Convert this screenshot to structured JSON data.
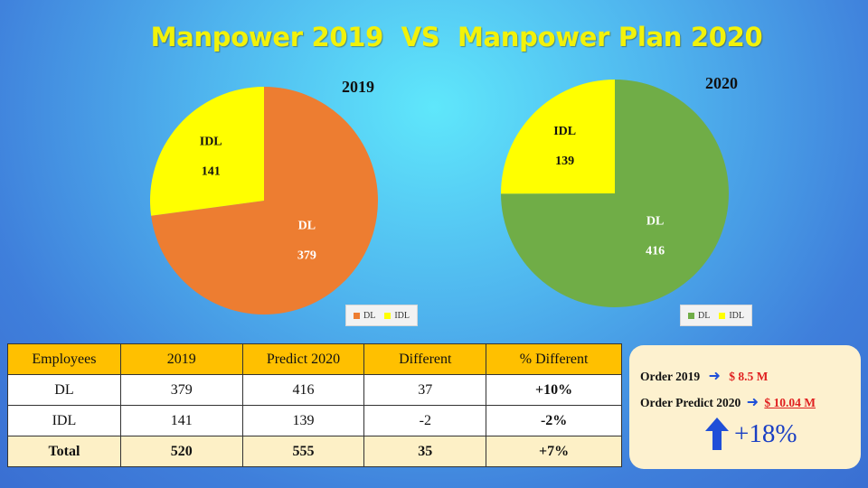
{
  "title": "Manpower 2019  VS  Manpower Plan 2020",
  "chart_data": [
    {
      "type": "pie",
      "title": "2019",
      "categories": [
        "DL",
        "IDL"
      ],
      "values": [
        379,
        141
      ],
      "colors": [
        "#ed7d31",
        "#ffff00"
      ],
      "legend": [
        "DL",
        "IDL"
      ],
      "legend_position": "bottom-right"
    },
    {
      "type": "pie",
      "title": "2020",
      "categories": [
        "DL",
        "IDL"
      ],
      "values": [
        416,
        139
      ],
      "colors": [
        "#70ad47",
        "#ffff00"
      ],
      "legend": [
        "DL",
        "IDL"
      ],
      "legend_position": "bottom-right"
    }
  ],
  "table": {
    "headers": [
      "Employees",
      "2019",
      "Predict 2020",
      "Different",
      "% Different"
    ],
    "rows": [
      [
        "DL",
        "379",
        "416",
        "37",
        "+10%"
      ],
      [
        "IDL",
        "141",
        "139",
        "-2",
        "-2%"
      ]
    ],
    "total": [
      "Total",
      "520",
      "555",
      "35",
      "+7%"
    ]
  },
  "order": {
    "line1_label": "Order  2019",
    "line1_value": "$ 8.5 M",
    "line2_label": "Order  Predict 2020",
    "line2_value": "$ 10.04 M",
    "arrow_icon": "right-arrow-icon",
    "growth": "+18%",
    "growth_icon": "up-arrow-icon"
  },
  "colors": {
    "title": "#f2f20a",
    "dl_2019": "#ed7d31",
    "dl_2020": "#70ad47",
    "idl": "#ffff00",
    "table_header": "#ffc000",
    "table_total": "#fdf0c6",
    "negative_text": "#e02020",
    "accent_blue": "#1f4fd8"
  }
}
